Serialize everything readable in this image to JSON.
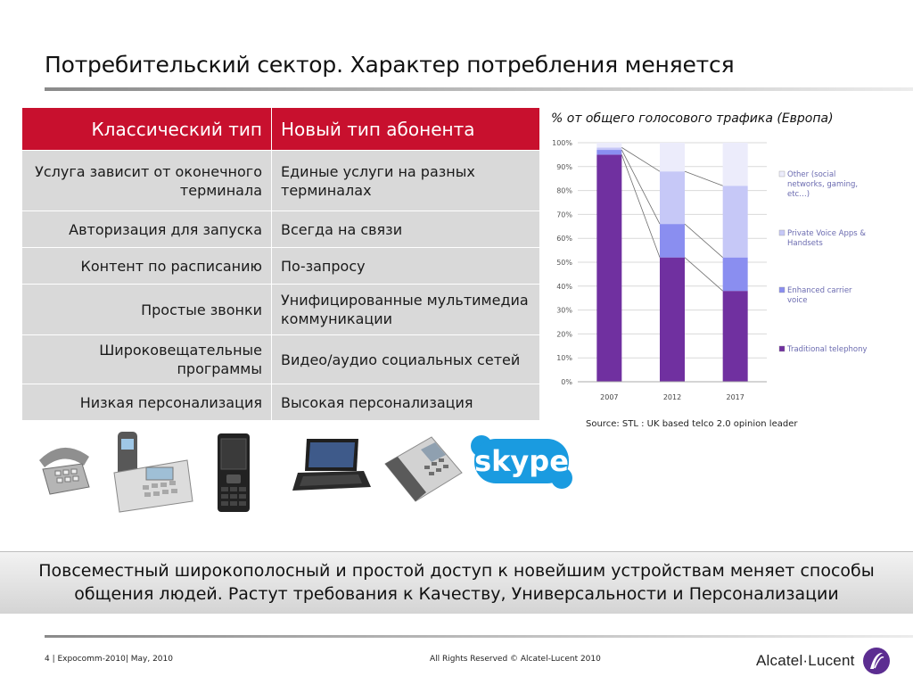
{
  "title": "Потребительский сектор. Характер потребления меняется",
  "table": {
    "headers": [
      "Классический тип",
      "Новый тип абонента"
    ],
    "rows": [
      [
        "Услуга зависит от оконечного терминала",
        "Единые услуги на разных терминалах"
      ],
      [
        "Авторизация для запуска",
        "Всегда на связи"
      ],
      [
        "Контент по расписанию",
        "По-запросу"
      ],
      [
        "Простые звонки",
        "Унифицированные мультимедиа коммуникации"
      ],
      [
        "Широковещательные программы",
        "Видео/аудио социальных сетей"
      ],
      [
        "Низкая персонализация",
        "Высокая персонализация"
      ]
    ]
  },
  "chart_title": "% от общего голосового трафика (Европа)",
  "chart_data": {
    "type": "bar",
    "stacked": true,
    "categories": [
      "2007",
      "2012",
      "2017"
    ],
    "series": [
      {
        "name": "Traditional telephony",
        "values": [
          95,
          52,
          38
        ],
        "color": "#7030a0"
      },
      {
        "name": "Enhanced carrier voice",
        "values": [
          2,
          14,
          14
        ],
        "color": "#8a8ef0"
      },
      {
        "name": "Private Voice Apps & Handsets",
        "values": [
          1,
          22,
          30
        ],
        "color": "#c6c8f7"
      },
      {
        "name": "Other (social networks, gaming, etc…)",
        "values": [
          2,
          12,
          18
        ],
        "color": "#ececfb"
      }
    ],
    "ylim": [
      0,
      100
    ],
    "yticks": [
      "0%",
      "10%",
      "20%",
      "30%",
      "40%",
      "50%",
      "60%",
      "70%",
      "80%",
      "90%",
      "100%"
    ],
    "legend_position": "right"
  },
  "chart_source": "Source: STL : UK based telco 2.0 opinion leader",
  "devices": [
    "landline-phone",
    "cordless-phone",
    "mobile-phone",
    "netbook",
    "ip-phone",
    "skype-logo"
  ],
  "skype_label": "skype",
  "banner": "Повсеместный широкополосный и простой доступ к новейшим устройствам меняет способы общения людей. Растут требования к Качеству, Универсальности и Персонализации",
  "footer_left": "4 | Expocomm-2010| May, 2010",
  "footer_center": "All Rights Reserved © Alcatel-Lucent 2010",
  "logo_text": "Alcatel·Lucent",
  "colors": {
    "accent": "#c8102e",
    "cell": "#d9d9d9"
  }
}
